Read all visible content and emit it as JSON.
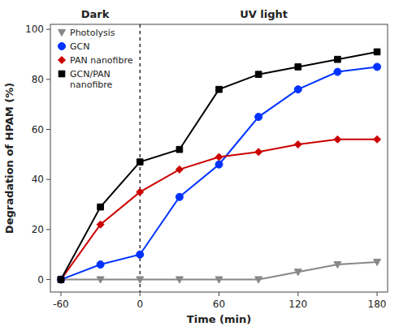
{
  "chart_data": {
    "type": "line",
    "x_label": "Time (min)",
    "y_label": "Degradation of HPAM (%)",
    "annotations": [
      "Dark",
      "UV light"
    ],
    "vline": 0,
    "x": [
      -60,
      -30,
      0,
      30,
      60,
      90,
      120,
      150,
      180
    ],
    "series": [
      {
        "name": "Photolysis",
        "color": "#888888",
        "marker": "triangle-down",
        "values": [
          0,
          0,
          0,
          0,
          0,
          0,
          3,
          6,
          7
        ]
      },
      {
        "name": "GCN",
        "color": "#0033ff",
        "marker": "circle",
        "values": [
          0,
          6,
          10,
          33,
          46,
          65,
          76,
          83,
          85
        ]
      },
      {
        "name": "PAN nanofibre",
        "color": "#cc0000",
        "marker": "diamond",
        "values": [
          0,
          22,
          35,
          44,
          49,
          51,
          54,
          56,
          56
        ]
      },
      {
        "name": "GCN/PAN\nnanofibre",
        "color": "#000000",
        "marker": "square",
        "values": [
          0,
          29,
          47,
          52,
          76,
          82,
          85,
          88,
          91
        ]
      }
    ],
    "xlim": [
      -68,
      188
    ],
    "ylim": [
      -5,
      102
    ],
    "xticks": [
      -60,
      0,
      60,
      120,
      180
    ],
    "yticks": [
      0,
      20,
      40,
      60,
      80,
      100
    ],
    "grid": false,
    "legend": "upper left"
  }
}
